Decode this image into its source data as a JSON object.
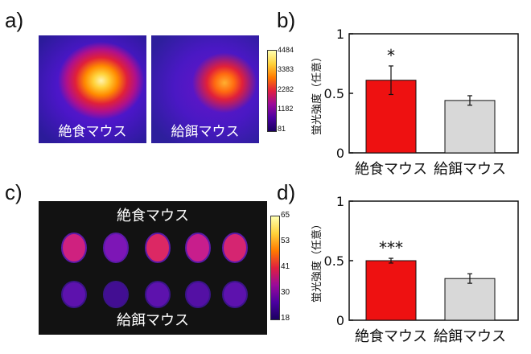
{
  "labels": {
    "a": "a)",
    "b": "b)",
    "c": "c)",
    "d": "d)"
  },
  "panel_a": {
    "left_caption": "絶食マウス",
    "right_caption": "給餌マウス",
    "colorbar_ticks": [
      "4484",
      "3383",
      "2282",
      "1182",
      "81"
    ]
  },
  "panel_c": {
    "top_caption": "絶食マウス",
    "bottom_caption": "給餌マウス",
    "colorbar_ticks": [
      "65",
      "53",
      "41",
      "30",
      "18"
    ]
  },
  "colors": {
    "fasted_bar": "#ee1111",
    "fed_bar": "#d8d8d8",
    "axis": "#111111"
  },
  "chart_data": [
    {
      "type": "bar",
      "panel": "b",
      "categories": [
        "絶食マウス",
        "給餌マウス"
      ],
      "values": [
        0.61,
        0.44
      ],
      "errors": [
        0.12,
        0.04
      ],
      "significance": [
        "*",
        ""
      ],
      "ylabel": "蛍光強度（任意）",
      "ylim": [
        0,
        1
      ],
      "yticks": [
        "0",
        "0.5",
        "1"
      ]
    },
    {
      "type": "bar",
      "panel": "d",
      "categories": [
        "絶食マウス",
        "給餌マウス"
      ],
      "values": [
        0.5,
        0.35
      ],
      "errors": [
        0.02,
        0.04
      ],
      "significance": [
        "***",
        ""
      ],
      "ylabel": "蛍光強度（任意）",
      "ylim": [
        0,
        1
      ],
      "yticks": [
        "0",
        "0.5",
        "1"
      ]
    }
  ],
  "organs": {
    "fasted_intensity": [
      0.75,
      0.45,
      0.85,
      0.7,
      0.8
    ],
    "fed_intensity": [
      0.3,
      0.15,
      0.3,
      0.25,
      0.3
    ]
  }
}
